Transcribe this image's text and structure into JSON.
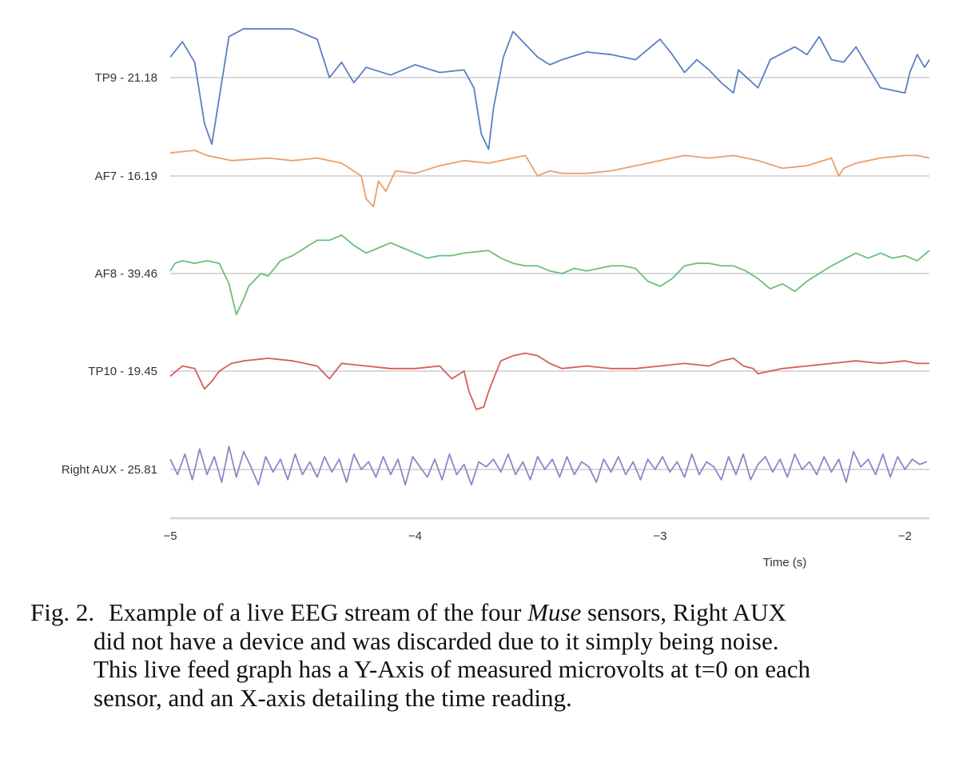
{
  "chart_data": {
    "type": "line",
    "xlabel": "Time (s)",
    "xlim": [
      -5,
      -1.9
    ],
    "x_ticks": [
      "−5",
      "−4",
      "−3",
      "−2"
    ],
    "x_tick_values": [
      -5,
      -4,
      -3,
      -2
    ],
    "grid": true,
    "series": [
      {
        "name": "TP9 - 21.18",
        "color": "#5b7fc4",
        "baseline": 21.18,
        "x": [
          -5.0,
          -4.95,
          -4.9,
          -4.86,
          -4.83,
          -4.8,
          -4.76,
          -4.7,
          -4.5,
          -4.4,
          -4.35,
          -4.3,
          -4.25,
          -4.2,
          -4.1,
          -4.0,
          -3.9,
          -3.8,
          -3.76,
          -3.73,
          -3.7,
          -3.68,
          -3.64,
          -3.6,
          -3.55,
          -3.5,
          -3.45,
          -3.4,
          -3.3,
          -3.2,
          -3.1,
          -3.0,
          -2.95,
          -2.9,
          -2.85,
          -2.8,
          -2.75,
          -2.7,
          -2.68,
          -2.6,
          -2.55,
          -2.45,
          -2.4,
          -2.35,
          -2.3,
          -2.25,
          -2.2,
          -2.1,
          -2.0,
          -1.98,
          -1.95,
          -1.92,
          -1.9
        ],
        "y": [
          0.8,
          1.4,
          0.6,
          -1.8,
          -2.6,
          -0.8,
          1.6,
          2.2,
          1.9,
          1.5,
          0.0,
          0.6,
          -0.2,
          0.4,
          0.1,
          0.5,
          0.2,
          0.3,
          -0.4,
          -2.2,
          -2.8,
          -1.2,
          0.8,
          1.8,
          1.3,
          0.8,
          0.5,
          0.7,
          1.0,
          0.9,
          0.7,
          1.5,
          0.9,
          0.2,
          0.7,
          0.3,
          -0.2,
          -0.6,
          0.3,
          -0.4,
          0.7,
          1.2,
          0.9,
          1.6,
          0.7,
          0.6,
          1.2,
          -0.4,
          -0.6,
          0.2,
          0.9,
          0.4,
          0.7
        ]
      },
      {
        "name": "AF7 - 16.19",
        "color": "#e8a06c",
        "baseline": 16.19,
        "x": [
          -5.0,
          -4.9,
          -4.85,
          -4.75,
          -4.6,
          -4.5,
          -4.4,
          -4.3,
          -4.22,
          -4.2,
          -4.17,
          -4.15,
          -4.12,
          -4.08,
          -4.0,
          -3.9,
          -3.8,
          -3.7,
          -3.6,
          -3.55,
          -3.5,
          -3.45,
          -3.4,
          -3.3,
          -3.2,
          -3.1,
          -3.0,
          -2.9,
          -2.8,
          -2.7,
          -2.6,
          -2.5,
          -2.4,
          -2.3,
          -2.27,
          -2.25,
          -2.2,
          -2.1,
          -2.0,
          -1.95,
          -1.9
        ],
        "y": [
          0.9,
          1.0,
          0.8,
          0.6,
          0.7,
          0.6,
          0.7,
          0.5,
          0.0,
          -0.9,
          -1.2,
          -0.2,
          -0.6,
          0.2,
          0.1,
          0.4,
          0.6,
          0.5,
          0.7,
          0.8,
          0.0,
          0.2,
          0.1,
          0.1,
          0.2,
          0.4,
          0.6,
          0.8,
          0.7,
          0.8,
          0.6,
          0.3,
          0.4,
          0.7,
          0.0,
          0.3,
          0.5,
          0.7,
          0.8,
          0.8,
          0.7
        ]
      },
      {
        "name": "AF8 - 39.46",
        "color": "#6bbf7a",
        "baseline": 39.46,
        "x": [
          -5.0,
          -4.98,
          -4.95,
          -4.9,
          -4.85,
          -4.8,
          -4.76,
          -4.73,
          -4.7,
          -4.68,
          -4.63,
          -4.6,
          -4.55,
          -4.5,
          -4.45,
          -4.4,
          -4.35,
          -4.3,
          -4.25,
          -4.2,
          -4.15,
          -4.1,
          -4.05,
          -4.0,
          -3.95,
          -3.9,
          -3.85,
          -3.8,
          -3.7,
          -3.65,
          -3.6,
          -3.55,
          -3.5,
          -3.45,
          -3.4,
          -3.35,
          -3.3,
          -3.25,
          -3.2,
          -3.15,
          -3.1,
          -3.05,
          -3.0,
          -2.95,
          -2.9,
          -2.85,
          -2.8,
          -2.75,
          -2.7,
          -2.65,
          -2.6,
          -2.55,
          -2.5,
          -2.45,
          -2.4,
          -2.3,
          -2.2,
          -2.15,
          -2.1,
          -2.05,
          -2.0,
          -1.95,
          -1.9
        ],
        "y": [
          0.1,
          0.4,
          0.5,
          0.4,
          0.5,
          0.4,
          -0.4,
          -1.6,
          -1.0,
          -0.5,
          0.0,
          -0.1,
          0.5,
          0.7,
          1.0,
          1.3,
          1.3,
          1.5,
          1.1,
          0.8,
          1.0,
          1.2,
          1.0,
          0.8,
          0.6,
          0.7,
          0.7,
          0.8,
          0.9,
          0.6,
          0.4,
          0.3,
          0.3,
          0.1,
          0.0,
          0.2,
          0.1,
          0.2,
          0.3,
          0.3,
          0.2,
          -0.3,
          -0.5,
          -0.2,
          0.3,
          0.4,
          0.4,
          0.3,
          0.3,
          0.1,
          -0.2,
          -0.6,
          -0.4,
          -0.7,
          -0.3,
          0.3,
          0.8,
          0.6,
          0.8,
          0.6,
          0.7,
          0.5,
          0.9
        ]
      },
      {
        "name": "TP10 - 19.45",
        "color": "#d65c5a",
        "baseline": 19.45,
        "x": [
          -5.0,
          -4.95,
          -4.9,
          -4.86,
          -4.83,
          -4.8,
          -4.75,
          -4.7,
          -4.6,
          -4.5,
          -4.4,
          -4.35,
          -4.3,
          -4.2,
          -4.1,
          -4.0,
          -3.9,
          -3.85,
          -3.8,
          -3.78,
          -3.75,
          -3.72,
          -3.7,
          -3.68,
          -3.65,
          -3.6,
          -3.55,
          -3.5,
          -3.45,
          -3.4,
          -3.3,
          -3.2,
          -3.1,
          -3.0,
          -2.9,
          -2.8,
          -2.75,
          -2.7,
          -2.66,
          -2.62,
          -2.6,
          -2.5,
          -2.4,
          -2.3,
          -2.2,
          -2.1,
          -2.0,
          -1.95,
          -1.9
        ],
        "y": [
          -0.2,
          0.2,
          0.1,
          -0.7,
          -0.4,
          0.0,
          0.3,
          0.4,
          0.5,
          0.4,
          0.2,
          -0.3,
          0.3,
          0.2,
          0.1,
          0.1,
          0.2,
          -0.3,
          0.0,
          -0.8,
          -1.5,
          -1.4,
          -0.8,
          -0.3,
          0.4,
          0.6,
          0.7,
          0.6,
          0.3,
          0.1,
          0.2,
          0.1,
          0.1,
          0.2,
          0.3,
          0.2,
          0.4,
          0.5,
          0.2,
          0.1,
          -0.1,
          0.1,
          0.2,
          0.3,
          0.4,
          0.3,
          0.4,
          0.3,
          0.3
        ]
      },
      {
        "name": "Right AUX - 25.81",
        "color": "#8e86c8",
        "baseline": 25.81,
        "x": [
          -5.0,
          -4.97,
          -4.94,
          -4.91,
          -4.88,
          -4.85,
          -4.82,
          -4.79,
          -4.76,
          -4.73,
          -4.7,
          -4.67,
          -4.64,
          -4.61,
          -4.58,
          -4.55,
          -4.52,
          -4.49,
          -4.46,
          -4.43,
          -4.4,
          -4.37,
          -4.34,
          -4.31,
          -4.28,
          -4.25,
          -4.22,
          -4.19,
          -4.16,
          -4.13,
          -4.1,
          -4.07,
          -4.04,
          -4.01,
          -3.98,
          -3.95,
          -3.92,
          -3.89,
          -3.86,
          -3.83,
          -3.8,
          -3.77,
          -3.74,
          -3.71,
          -3.68,
          -3.65,
          -3.62,
          -3.59,
          -3.56,
          -3.53,
          -3.5,
          -3.47,
          -3.44,
          -3.41,
          -3.38,
          -3.35,
          -3.32,
          -3.29,
          -3.26,
          -3.23,
          -3.2,
          -3.17,
          -3.14,
          -3.11,
          -3.08,
          -3.05,
          -3.02,
          -2.99,
          -2.96,
          -2.93,
          -2.9,
          -2.87,
          -2.84,
          -2.81,
          -2.78,
          -2.75,
          -2.72,
          -2.69,
          -2.66,
          -2.63,
          -2.6,
          -2.57,
          -2.54,
          -2.51,
          -2.48,
          -2.45,
          -2.42,
          -2.39,
          -2.36,
          -2.33,
          -2.3,
          -2.27,
          -2.24,
          -2.21,
          -2.18,
          -2.15,
          -2.12,
          -2.09,
          -2.06,
          -2.03,
          -2.0,
          -1.97,
          -1.94,
          -1.91
        ],
        "y": [
          0.4,
          -0.2,
          0.6,
          -0.4,
          0.8,
          -0.2,
          0.5,
          -0.5,
          0.9,
          -0.3,
          0.7,
          0.1,
          -0.6,
          0.5,
          -0.1,
          0.4,
          -0.4,
          0.6,
          -0.2,
          0.3,
          -0.3,
          0.5,
          -0.1,
          0.4,
          -0.5,
          0.6,
          0.0,
          0.3,
          -0.3,
          0.5,
          -0.2,
          0.4,
          -0.6,
          0.5,
          0.1,
          -0.3,
          0.4,
          -0.4,
          0.6,
          -0.2,
          0.2,
          -0.6,
          0.3,
          0.1,
          0.4,
          -0.1,
          0.6,
          -0.2,
          0.3,
          -0.4,
          0.5,
          0.0,
          0.4,
          -0.3,
          0.5,
          -0.2,
          0.3,
          0.1,
          -0.5,
          0.4,
          -0.1,
          0.5,
          -0.2,
          0.3,
          -0.4,
          0.4,
          0.0,
          0.5,
          -0.1,
          0.3,
          -0.3,
          0.6,
          -0.2,
          0.3,
          0.1,
          -0.4,
          0.5,
          -0.2,
          0.6,
          -0.4,
          0.2,
          0.5,
          -0.1,
          0.4,
          -0.3,
          0.6,
          0.0,
          0.3,
          -0.2,
          0.5,
          -0.1,
          0.4,
          -0.5,
          0.7,
          0.1,
          0.4,
          -0.2,
          0.6,
          -0.3,
          0.5,
          0.0,
          0.4,
          0.2,
          0.3
        ]
      }
    ]
  },
  "caption": {
    "label": "Fig. 2.",
    "text_before": "Example of a live EEG stream of the four",
    "emphasis": "Muse",
    "text_after": "sensors, Right AUX",
    "line2": "did not have a device and was discarded due to it simply being noise.",
    "line3": "This live feed graph has a Y-Axis of measured microvolts at t=0 on each",
    "line4": "sensor, and an X-axis detailing the time reading."
  }
}
